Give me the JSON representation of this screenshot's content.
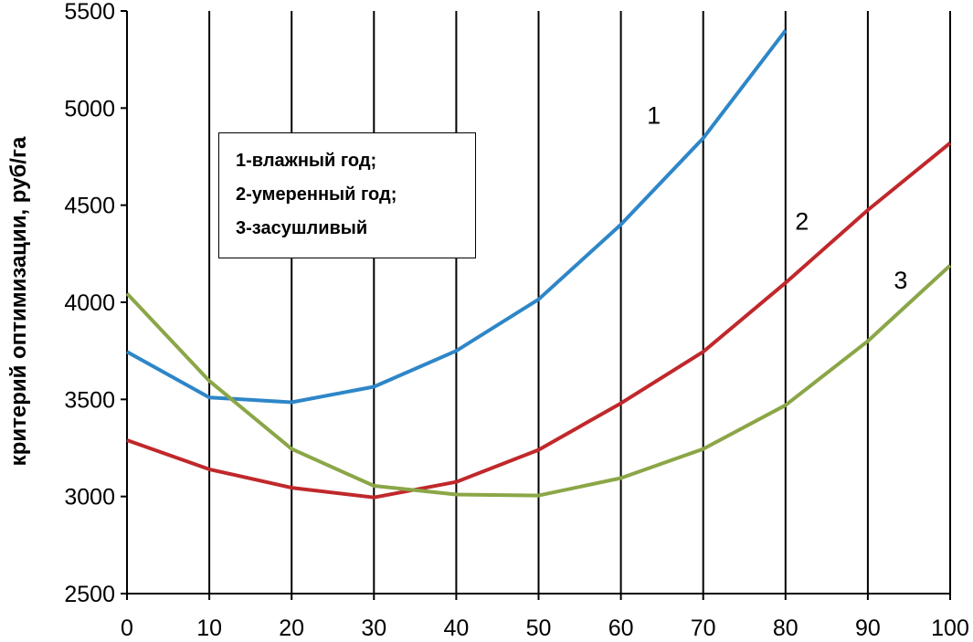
{
  "chart_data": {
    "type": "line",
    "title": "",
    "xlabel": "",
    "ylabel": "критерий оптимизации, руб/га",
    "x": [
      0,
      10,
      20,
      30,
      40,
      50,
      60,
      70,
      80,
      90,
      100
    ],
    "xlim": [
      0,
      100
    ],
    "ylim": [
      2500,
      5500
    ],
    "xticks": [
      0,
      10,
      20,
      30,
      40,
      50,
      60,
      70,
      80,
      90,
      100
    ],
    "yticks": [
      2500,
      3000,
      3500,
      4000,
      4500,
      5000,
      5500
    ],
    "grid": "vertical",
    "series": [
      {
        "name": "1",
        "color": "#2e86c8",
        "values": [
          3745,
          3510,
          3485,
          3565,
          3750,
          4015,
          4400,
          4845,
          5400,
          null,
          null
        ]
      },
      {
        "name": "2",
        "color": "#c0282b",
        "values": [
          3290,
          3140,
          3045,
          2995,
          3075,
          3240,
          3480,
          3745,
          4100,
          4475,
          4820
        ]
      },
      {
        "name": "3",
        "color": "#8ba647",
        "values": [
          4045,
          3595,
          3245,
          3055,
          3010,
          3005,
          3095,
          3245,
          3470,
          3800,
          4190
        ]
      }
    ],
    "legend": {
      "placement": "top-left",
      "entries": [
        "1-влажный год;",
        "2-умеренный год;",
        "3-засушливый"
      ]
    }
  }
}
